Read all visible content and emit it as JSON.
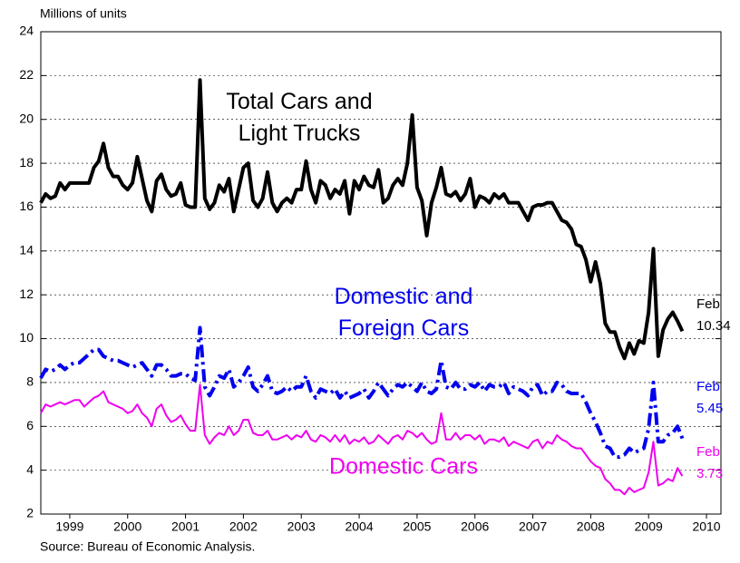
{
  "chart_data": {
    "type": "line",
    "y_axis_label": "Millions of units",
    "source": "Source: Bureau of Economic Analysis.",
    "xlim": [
      1999,
      2010.75
    ],
    "xticks": [
      {
        "value": 1999.5,
        "label": "1999"
      },
      {
        "value": 2000.5,
        "label": "2000"
      },
      {
        "value": 2001.5,
        "label": "2001"
      },
      {
        "value": 2002.5,
        "label": "2002"
      },
      {
        "value": 2003.5,
        "label": "2003"
      },
      {
        "value": 2004.5,
        "label": "2004"
      },
      {
        "value": 2005.5,
        "label": "2005"
      },
      {
        "value": 2006.5,
        "label": "2006"
      },
      {
        "value": 2007.5,
        "label": "2007"
      },
      {
        "value": 2008.5,
        "label": "2008"
      },
      {
        "value": 2009.5,
        "label": "2009"
      },
      {
        "value": 2010.5,
        "label": "2010"
      }
    ],
    "ylim": [
      2,
      24
    ],
    "yticks": [
      2,
      4,
      6,
      8,
      10,
      12,
      14,
      16,
      18,
      20,
      22,
      24
    ],
    "grid": true,
    "x": [
      1999.0,
      1999.083,
      1999.167,
      1999.25,
      1999.333,
      1999.417,
      1999.5,
      1999.583,
      1999.667,
      1999.75,
      1999.833,
      1999.917,
      2000.0,
      2000.083,
      2000.167,
      2000.25,
      2000.333,
      2000.417,
      2000.5,
      2000.583,
      2000.667,
      2000.75,
      2000.833,
      2000.917,
      2001.0,
      2001.083,
      2001.167,
      2001.25,
      2001.333,
      2001.417,
      2001.5,
      2001.583,
      2001.667,
      2001.75,
      2001.833,
      2001.917,
      2002.0,
      2002.083,
      2002.167,
      2002.25,
      2002.333,
      2002.417,
      2002.5,
      2002.583,
      2002.667,
      2002.75,
      2002.833,
      2002.917,
      2003.0,
      2003.083,
      2003.167,
      2003.25,
      2003.333,
      2003.417,
      2003.5,
      2003.583,
      2003.667,
      2003.75,
      2003.833,
      2003.917,
      2004.0,
      2004.083,
      2004.167,
      2004.25,
      2004.333,
      2004.417,
      2004.5,
      2004.583,
      2004.667,
      2004.75,
      2004.833,
      2004.917,
      2005.0,
      2005.083,
      2005.167,
      2005.25,
      2005.333,
      2005.417,
      2005.5,
      2005.583,
      2005.667,
      2005.75,
      2005.833,
      2005.917,
      2006.0,
      2006.083,
      2006.167,
      2006.25,
      2006.333,
      2006.417,
      2006.5,
      2006.583,
      2006.667,
      2006.75,
      2006.833,
      2006.917,
      2007.0,
      2007.083,
      2007.167,
      2007.25,
      2007.333,
      2007.417,
      2007.5,
      2007.583,
      2007.667,
      2007.75,
      2007.833,
      2007.917,
      2008.0,
      2008.083,
      2008.167,
      2008.25,
      2008.333,
      2008.417,
      2008.5,
      2008.583,
      2008.667,
      2008.75,
      2008.833,
      2008.917,
      2009.0,
      2009.083,
      2009.167,
      2009.25,
      2009.333,
      2009.417,
      2009.5,
      2009.583,
      2009.667,
      2009.75,
      2009.833,
      2009.917,
      2010.0,
      2010.083
    ],
    "series": [
      {
        "name": "Total Cars and\nLight Trucks",
        "color": "#000000",
        "width": 4,
        "dash": "solid",
        "end_label": "Feb",
        "values": [
          16.2,
          16.6,
          16.4,
          16.5,
          17.1,
          16.8,
          17.1,
          17.1,
          17.1,
          17.1,
          17.1,
          17.8,
          18.1,
          18.9,
          17.8,
          17.4,
          17.4,
          17.0,
          16.8,
          17.1,
          18.3,
          17.3,
          16.3,
          15.8,
          17.2,
          17.5,
          16.8,
          16.5,
          16.6,
          17.1,
          16.1,
          16.0,
          16.0,
          21.8,
          16.4,
          15.9,
          16.2,
          17.0,
          16.7,
          17.3,
          15.8,
          16.8,
          17.8,
          18.0,
          16.3,
          16.0,
          16.4,
          17.6,
          16.2,
          15.8,
          16.2,
          16.4,
          16.2,
          16.8,
          16.8,
          18.1,
          16.8,
          16.2,
          17.2,
          17.0,
          16.4,
          16.8,
          16.6,
          17.2,
          15.7,
          17.2,
          16.8,
          17.4,
          17.0,
          16.9,
          17.7,
          16.2,
          16.4,
          17.0,
          17.3,
          17.0,
          18.0,
          20.2,
          16.9,
          16.3,
          14.7,
          16.2,
          16.9,
          17.8,
          16.6,
          16.5,
          16.7,
          16.3,
          16.6,
          17.3,
          16.0,
          16.5,
          16.4,
          16.2,
          16.6,
          16.4,
          16.6,
          16.2,
          16.2,
          16.2,
          15.8,
          15.4,
          16.0,
          16.1,
          16.1,
          16.2,
          16.2,
          15.8,
          15.4,
          15.3,
          15.0,
          14.3,
          14.2,
          13.6,
          12.6,
          13.5,
          12.5,
          10.7,
          10.3,
          10.3,
          9.6,
          9.1,
          9.8,
          9.3,
          9.9,
          9.8,
          11.2,
          14.1,
          9.2,
          10.4,
          10.9,
          11.2,
          10.8,
          10.34
        ]
      },
      {
        "name": "Domestic and\nForeign Cars",
        "color": "#0000ee",
        "width": 4,
        "dash": "dash-dot",
        "end_label": "Feb",
        "values": [
          8.2,
          8.6,
          8.5,
          8.6,
          8.8,
          8.6,
          8.8,
          8.9,
          8.9,
          9.1,
          9.3,
          9.5,
          9.5,
          9.2,
          9.1,
          9.0,
          9.0,
          8.9,
          8.8,
          8.7,
          8.8,
          8.9,
          8.6,
          8.3,
          8.8,
          8.8,
          8.6,
          8.3,
          8.3,
          8.4,
          8.4,
          8.2,
          8.1,
          10.5,
          7.8,
          7.4,
          7.8,
          8.3,
          8.2,
          8.6,
          7.8,
          8.0,
          8.3,
          8.7,
          7.8,
          7.6,
          7.9,
          8.3,
          7.6,
          7.5,
          7.6,
          7.8,
          7.6,
          7.8,
          7.8,
          8.3,
          7.6,
          7.3,
          7.7,
          7.6,
          7.5,
          7.7,
          7.3,
          7.6,
          7.3,
          7.4,
          7.5,
          7.7,
          7.3,
          7.6,
          8.0,
          7.7,
          7.4,
          7.7,
          7.9,
          7.8,
          8.0,
          7.8,
          7.6,
          8.0,
          7.6,
          7.5,
          7.7,
          9.0,
          7.8,
          7.7,
          8.0,
          7.7,
          7.7,
          7.9,
          7.8,
          8.0,
          7.6,
          7.9,
          7.8,
          7.8,
          8.0,
          7.5,
          7.8,
          7.7,
          7.6,
          7.4,
          7.8,
          7.9,
          7.4,
          7.6,
          7.6,
          8.0,
          7.9,
          7.6,
          7.5,
          7.5,
          7.5,
          7.1,
          6.6,
          6.2,
          5.7,
          5.1,
          5.0,
          4.6,
          4.6,
          4.7,
          5.0,
          4.8,
          4.9,
          5.0,
          5.9,
          8.0,
          5.3,
          5.3,
          5.6,
          5.7,
          6.0,
          5.45
        ]
      },
      {
        "name": "Domestic Cars",
        "color": "#ee00ee",
        "width": 2,
        "dash": "solid",
        "end_label": "Feb",
        "values": [
          6.6,
          7.0,
          6.9,
          7.0,
          7.1,
          7.0,
          7.1,
          7.2,
          7.2,
          6.9,
          7.1,
          7.3,
          7.4,
          7.6,
          7.1,
          7.0,
          6.9,
          6.8,
          6.6,
          6.7,
          7.0,
          6.6,
          6.4,
          6.0,
          6.8,
          7.0,
          6.5,
          6.2,
          6.3,
          6.5,
          6.1,
          5.8,
          5.8,
          7.9,
          5.6,
          5.2,
          5.5,
          5.7,
          5.6,
          6.0,
          5.6,
          5.8,
          6.3,
          6.3,
          5.7,
          5.6,
          5.6,
          5.8,
          5.4,
          5.4,
          5.5,
          5.6,
          5.4,
          5.6,
          5.5,
          5.8,
          5.4,
          5.3,
          5.6,
          5.5,
          5.3,
          5.6,
          5.3,
          5.6,
          5.2,
          5.4,
          5.3,
          5.5,
          5.2,
          5.3,
          5.6,
          5.4,
          5.2,
          5.5,
          5.6,
          5.4,
          5.8,
          5.7,
          5.5,
          5.7,
          5.4,
          5.2,
          5.3,
          6.6,
          5.4,
          5.4,
          5.7,
          5.4,
          5.6,
          5.6,
          5.4,
          5.6,
          5.2,
          5.4,
          5.4,
          5.3,
          5.5,
          5.1,
          5.3,
          5.2,
          5.1,
          5.0,
          5.3,
          5.4,
          5.0,
          5.3,
          5.2,
          5.6,
          5.4,
          5.3,
          5.1,
          5.0,
          5.0,
          4.7,
          4.4,
          4.2,
          4.1,
          3.6,
          3.4,
          3.1,
          3.1,
          2.9,
          3.2,
          3.0,
          3.1,
          3.2,
          3.9,
          5.3,
          3.3,
          3.4,
          3.6,
          3.5,
          4.1,
          3.73
        ]
      }
    ]
  }
}
